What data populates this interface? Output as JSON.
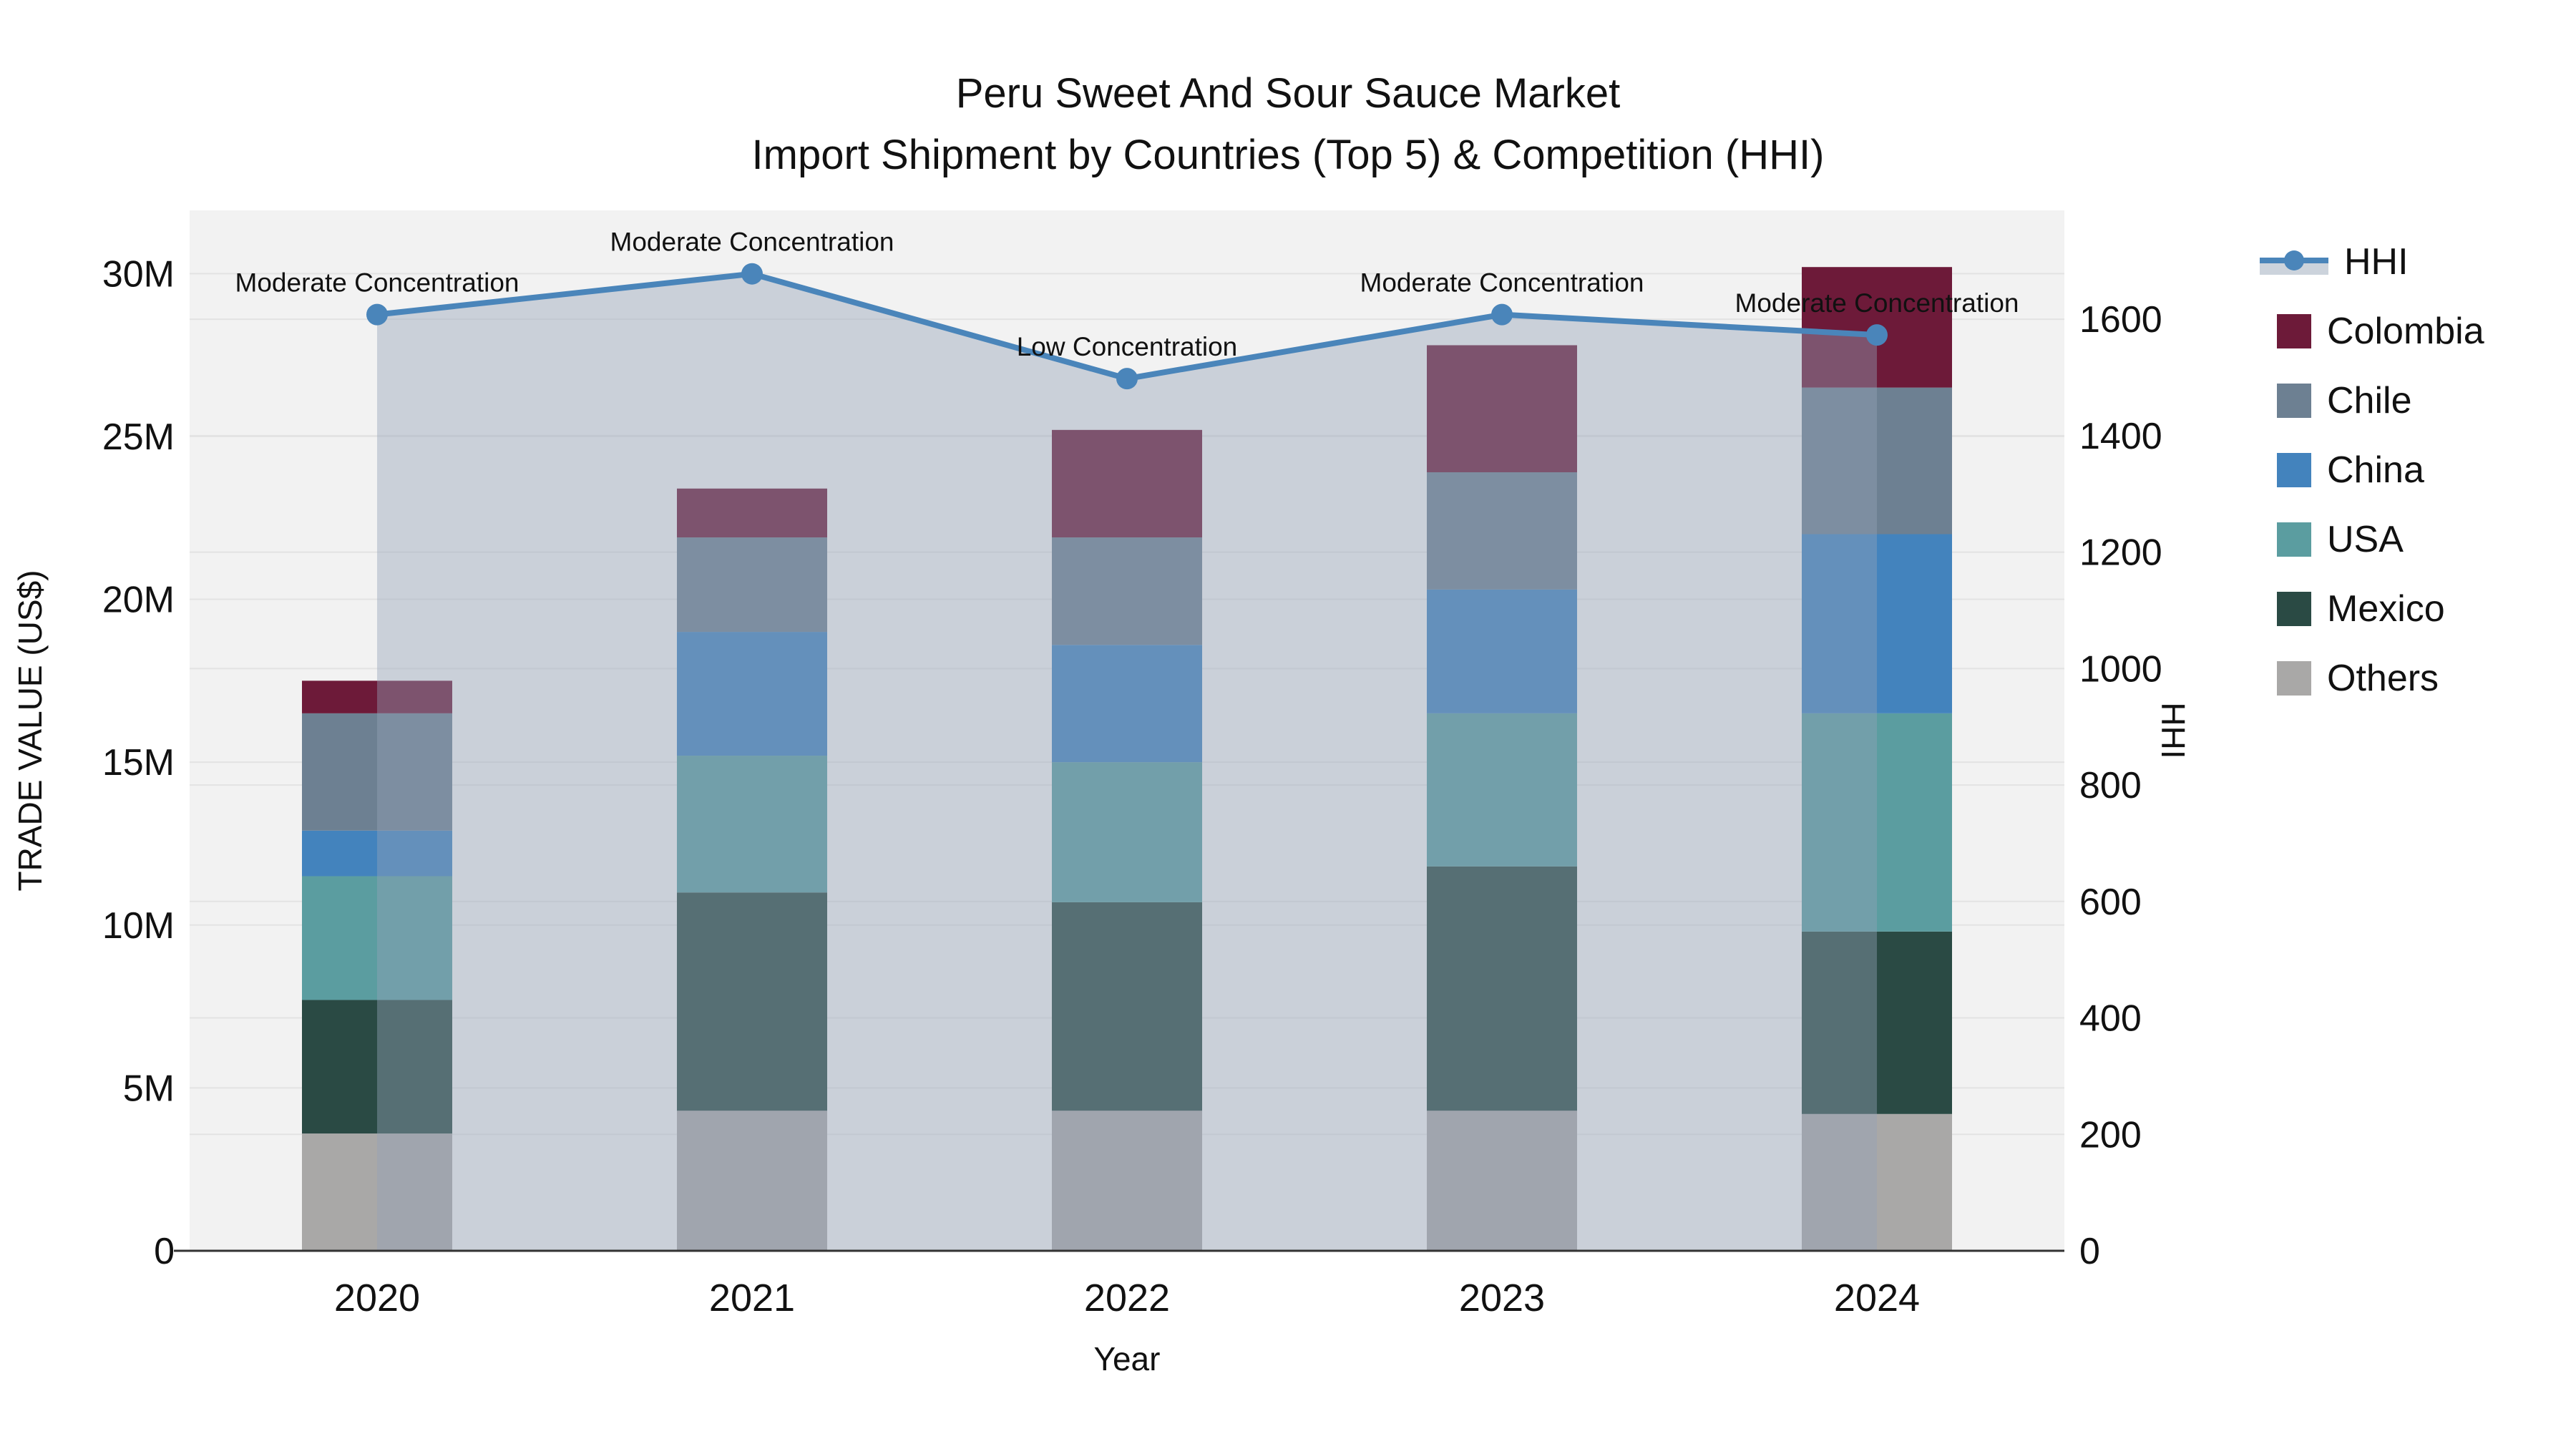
{
  "title": {
    "line1": "Peru Sweet And Sour Sauce Market",
    "line2": "Import Shipment by Countries (Top 5) & Competition (HHI)"
  },
  "axes": {
    "left": {
      "title": "TRADE VALUE (US$)",
      "tick_labels": [
        "0",
        "5M",
        "10M",
        "15M",
        "20M",
        "25M",
        "30M"
      ],
      "tick_values_musd": [
        0,
        5,
        10,
        15,
        20,
        25,
        30
      ],
      "max_musd": 31.94
    },
    "right": {
      "title": "HHI",
      "tick_labels": [
        "0",
        "200",
        "400",
        "600",
        "800",
        "1000",
        "1200",
        "1400",
        "1600"
      ],
      "tick_values": [
        0,
        200,
        400,
        600,
        800,
        1000,
        1200,
        1400,
        1600
      ],
      "max": 1787
    },
    "x": {
      "title": "Year"
    }
  },
  "legend": {
    "items": [
      {
        "label": "HHI",
        "type": "line",
        "color": "#4a85ba",
        "band_color": "#ccd3dc"
      },
      {
        "label": "Colombia",
        "type": "bar",
        "color": "#6d1a39"
      },
      {
        "label": "Chile",
        "type": "bar",
        "color": "#6d8092"
      },
      {
        "label": "China",
        "type": "bar",
        "color": "#4383bd"
      },
      {
        "label": "USA",
        "type": "bar",
        "color": "#5b9da0"
      },
      {
        "label": "Mexico",
        "type": "bar",
        "color": "#2a4a44"
      },
      {
        "label": "Others",
        "type": "bar",
        "color": "#a9a8a7"
      }
    ]
  },
  "chart_data": {
    "type": "bar",
    "subtype": "stacked-bars-with-line-overlay",
    "title": "Peru Sweet And Sour Sauce Market — Import Shipment by Countries (Top 5) & Competition (HHI)",
    "categories": [
      "2020",
      "2021",
      "2022",
      "2023",
      "2024"
    ],
    "xlabel": "Year",
    "ylabel_left": "TRADE VALUE (US$)",
    "ylabel_right": "HHI",
    "units": "millions of US$",
    "ylim_left_musd": [
      0,
      31.94
    ],
    "ylim_right_hhi": [
      0,
      1787
    ],
    "grid": true,
    "legend_position": "right",
    "series": [
      {
        "name": "Others",
        "color": "#a9a8a7",
        "values_musd": [
          3.6,
          4.3,
          4.3,
          4.3,
          4.2
        ]
      },
      {
        "name": "Mexico",
        "color": "#2a4a44",
        "values_musd": [
          4.1,
          6.7,
          6.4,
          7.5,
          5.6
        ]
      },
      {
        "name": "USA",
        "color": "#5b9da0",
        "values_musd": [
          3.8,
          4.2,
          4.3,
          4.7,
          6.7
        ]
      },
      {
        "name": "China",
        "color": "#4383bd",
        "values_musd": [
          1.4,
          3.8,
          3.6,
          3.8,
          5.5
        ]
      },
      {
        "name": "Chile",
        "color": "#6d8092",
        "values_musd": [
          3.6,
          2.9,
          3.3,
          3.6,
          4.5
        ]
      },
      {
        "name": "Colombia",
        "color": "#6d1a39",
        "values_musd": [
          1.0,
          1.5,
          3.3,
          3.9,
          3.7
        ]
      }
    ],
    "bar_totals_musd": [
      17.5,
      23.4,
      25.2,
      27.8,
      30.2
    ],
    "line": {
      "name": "HHI",
      "axis": "right",
      "color": "#4a85ba",
      "area_fill": "rgba(148,163,184,0.42)",
      "values": [
        1608,
        1678,
        1498,
        1608,
        1573
      ]
    },
    "annotations": [
      {
        "year": "2020",
        "text": "Moderate Concentration"
      },
      {
        "year": "2021",
        "text": "Moderate Concentration"
      },
      {
        "year": "2022",
        "text": "Low Concentration"
      },
      {
        "year": "2023",
        "text": "Moderate Concentration"
      },
      {
        "year": "2024",
        "text": "Moderate Concentration"
      }
    ]
  },
  "colors": {
    "plot_bg": "#f2f2f2",
    "gridline": "#e3e3e3",
    "axis_line": "#333333",
    "text": "#111111"
  }
}
